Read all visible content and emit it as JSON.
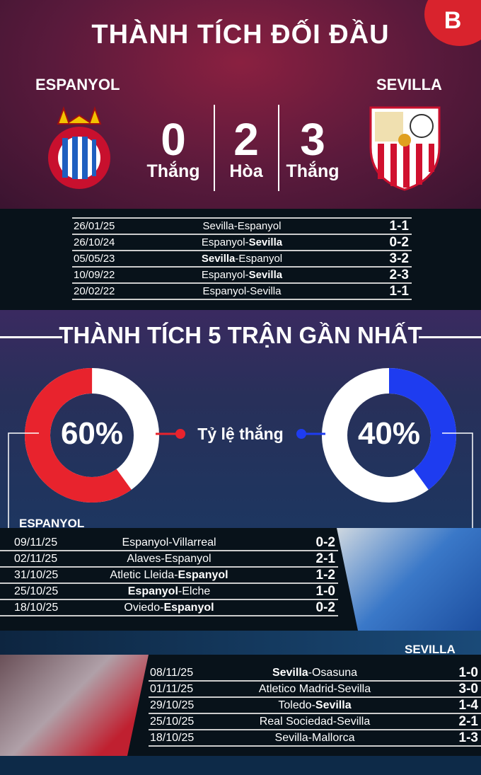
{
  "title": "THÀNH TÍCH ĐỐI ĐẦU",
  "brand_logo": "B",
  "home_team": "ESPANYOL",
  "away_team": "SEVILLA",
  "h2h": {
    "home_wins": "0",
    "draws": "2",
    "away_wins": "3",
    "home_wins_label": "Thắng",
    "draws_label": "Hòa",
    "away_wins_label": "Thắng"
  },
  "h2h_matches": [
    {
      "date": "26/01/25",
      "home": "Sevilla",
      "away": "Espanyol",
      "bold": "",
      "score": "1-1"
    },
    {
      "date": "26/10/24",
      "home": "Espanyol",
      "away": "Sevilla",
      "bold": "away",
      "score": "0-2"
    },
    {
      "date": "05/05/23",
      "home": "Sevilla",
      "away": "Espanyol",
      "bold": "home",
      "score": "3-2"
    },
    {
      "date": "10/09/22",
      "home": "Espanyol",
      "away": "Sevilla",
      "bold": "away",
      "score": "2-3"
    },
    {
      "date": "20/02/22",
      "home": "Espanyol",
      "away": "Sevilla",
      "bold": "",
      "score": "1-1"
    }
  ],
  "form_title": "THÀNH TÍCH 5 TRẬN GẦN NHẤT",
  "win_rate_label": "Tỷ lệ thắng",
  "home_win_rate": {
    "text": "60%",
    "value": 60,
    "color": "#e8232d"
  },
  "away_win_rate": {
    "text": "40%",
    "value": 40,
    "color": "#1e3cf0"
  },
  "home_form_label": "ESPANYOL",
  "home_form": [
    {
      "date": "09/11/25",
      "home": "Espanyol",
      "away": "Villarreal",
      "bold": "",
      "score": "0-2"
    },
    {
      "date": "02/11/25",
      "home": "Alaves",
      "away": "Espanyol",
      "bold": "",
      "score": "2-1"
    },
    {
      "date": "31/10/25",
      "home": "Atletic Lleida",
      "away": "Espanyol",
      "bold": "away",
      "score": "1-2"
    },
    {
      "date": "25/10/25",
      "home": "Espanyol",
      "away": "Elche",
      "bold": "home",
      "score": "1-0"
    },
    {
      "date": "18/10/25",
      "home": "Oviedo",
      "away": "Espanyol",
      "bold": "away",
      "score": "0-2"
    }
  ],
  "away_form_label": "SEVILLA",
  "away_form": [
    {
      "date": "08/11/25",
      "home": "Sevilla",
      "away": "Osasuna",
      "bold": "home",
      "score": "1-0"
    },
    {
      "date": "01/11/25",
      "home": "Atletico Madrid",
      "away": "Sevilla",
      "bold": "",
      "score": "3-0"
    },
    {
      "date": "29/10/25",
      "home": "Toledo",
      "away": "Sevilla",
      "bold": "away",
      "score": "1-4"
    },
    {
      "date": "25/10/25",
      "home": "Real Sociedad",
      "away": "Sevilla",
      "bold": "",
      "score": "2-1"
    },
    {
      "date": "18/10/25",
      "home": "Sevilla",
      "away": "Mallorca",
      "bold": "",
      "score": "1-3"
    }
  ]
}
